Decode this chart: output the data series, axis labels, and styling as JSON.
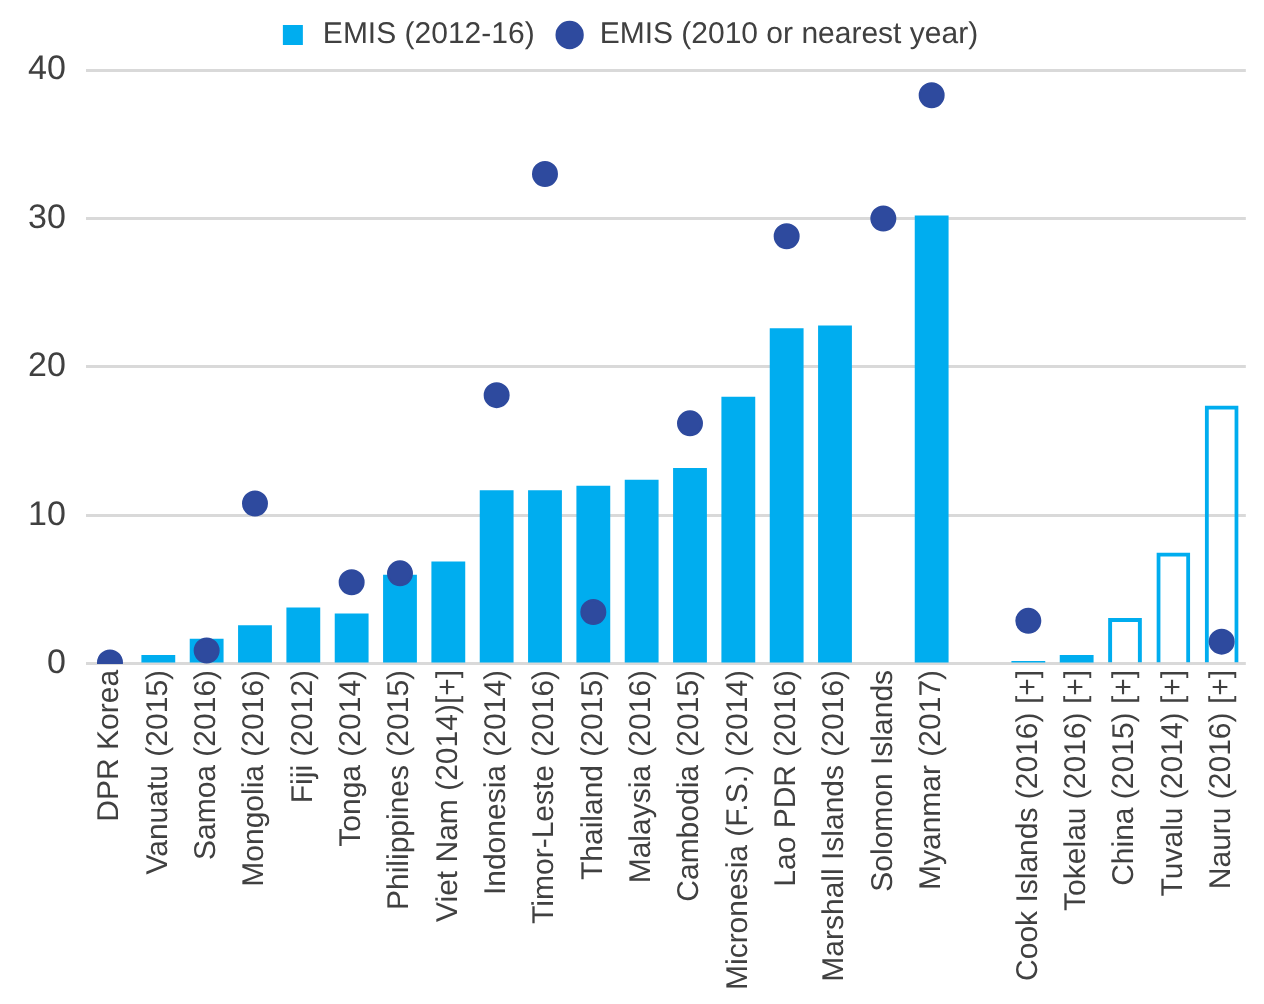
{
  "chart_data": {
    "type": "bar",
    "categories": [
      "DPR Korea",
      "Vanuatu (2015)",
      "Samoa (2016)",
      "Mongolia (2016)",
      "Fiji (2012)",
      "Tonga (2014)",
      "Philippines (2015)",
      "Viet Nam (2014)[+]",
      "Indonesia (2014)",
      "Timor-Leste (2016)",
      "Thailand (2015)",
      "Malaysia (2016)",
      "Cambodia (2015)",
      "Micronesia (F.S.) (2014)",
      "Lao PDR (2016)",
      "Marshall Islands (2016)",
      "Solomon Islands",
      "Myanmar (2017)",
      null,
      "Cook Islands (2016) [+]",
      "Tokelau (2016) [+]",
      "China (2015) [+]",
      "Tuvalu (2014) [+]",
      "Nauru (2016) [+]"
    ],
    "series": [
      {
        "name": "EMIS (2012-16)",
        "color": "#00adef",
        "values": [
          null,
          0.6,
          1.7,
          2.6,
          3.8,
          3.4,
          6.0,
          6.9,
          11.7,
          11.7,
          12.0,
          12.4,
          13.2,
          18.0,
          22.6,
          22.8,
          null,
          30.2,
          null,
          0.2,
          0.6,
          null,
          null,
          null
        ]
      },
      {
        "color": "#00adef",
        "values": [
          null,
          null,
          null,
          null,
          null,
          null,
          null,
          null,
          null,
          null,
          null,
          null,
          null,
          null,
          null,
          null,
          null,
          null,
          null,
          null,
          null,
          3.1,
          7.5,
          17.4
        ]
      },
      {
        "type": "scatter",
        "name": "EMIS (2010 or nearest year)",
        "color": "#2e4a9e",
        "values": [
          0.1,
          null,
          0.9,
          10.8,
          null,
          5.5,
          6.1,
          null,
          18.1,
          33.0,
          3.5,
          null,
          16.2,
          null,
          28.8,
          null,
          30.0,
          38.3,
          null,
          2.9,
          null,
          null,
          null,
          1.5
        ]
      }
    ],
    "ylim": [
      0,
      40
    ],
    "yticks": [
      0,
      10,
      20,
      30,
      40
    ],
    "grid": "y",
    "legend": "top",
    "marker": "circle"
  }
}
